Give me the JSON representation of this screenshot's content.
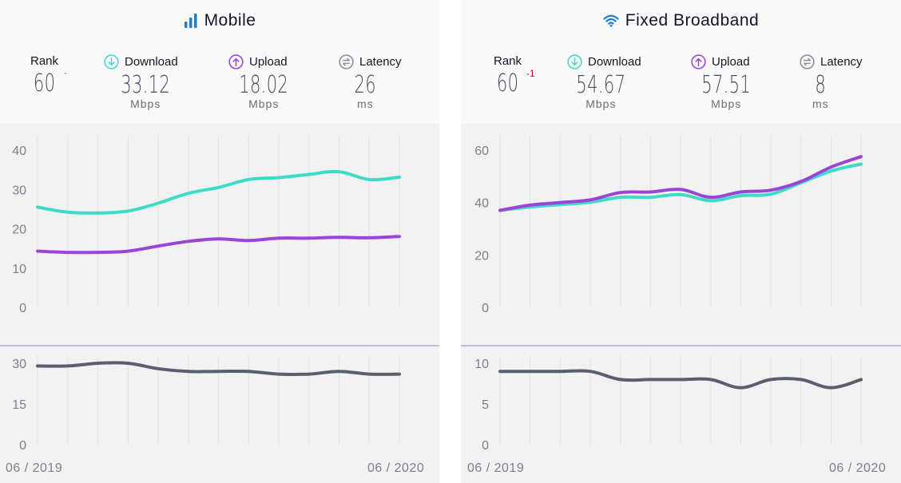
{
  "colors": {
    "download": "#3ddcc8",
    "upload": "#9b45d8",
    "latency": "#5b5d70",
    "rank_change": "#d0021b"
  },
  "mobile": {
    "title": "Mobile",
    "icon": "signal-bars-icon",
    "rank_label": "Rank",
    "rank": "60",
    "rank_change": "-",
    "download_label": "Download",
    "download": "33.12",
    "download_unit": "Mbps",
    "upload_label": "Upload",
    "upload": "18.02",
    "upload_unit": "Mbps",
    "latency_label": "Latency",
    "latency": "26",
    "latency_unit": "ms",
    "date_start": "06 / 2019",
    "date_end": "06 / 2020"
  },
  "fixed": {
    "title": "Fixed Broadband",
    "icon": "wifi-icon",
    "rank_label": "Rank",
    "rank": "60",
    "rank_change": "-1",
    "download_label": "Download",
    "download": "54.67",
    "download_unit": "Mbps",
    "upload_label": "Upload",
    "upload": "57.51",
    "upload_unit": "Mbps",
    "latency_label": "Latency",
    "latency": "8",
    "latency_unit": "ms",
    "date_start": "06 / 2019",
    "date_end": "06 / 2020"
  },
  "chart_data": [
    {
      "type": "line",
      "id": "mobile-speed",
      "x": [
        "06/2019",
        "07/2019",
        "08/2019",
        "09/2019",
        "10/2019",
        "11/2019",
        "12/2019",
        "01/2020",
        "02/2020",
        "03/2020",
        "04/2020",
        "05/2020",
        "06/2020"
      ],
      "series": [
        {
          "name": "Download",
          "values": [
            25.5,
            24.2,
            24.0,
            24.5,
            26.5,
            29,
            30.5,
            32.5,
            33,
            33.8,
            34.5,
            32.5,
            33.12
          ]
        },
        {
          "name": "Upload",
          "values": [
            14.3,
            14.0,
            14.0,
            14.3,
            15.6,
            16.8,
            17.4,
            17.0,
            17.6,
            17.6,
            17.8,
            17.7,
            18.02
          ]
        }
      ],
      "yticks": [
        0,
        10,
        20,
        30,
        40
      ],
      "ylim": [
        0,
        40
      ]
    },
    {
      "type": "line",
      "id": "mobile-latency",
      "x": [
        "06/2019",
        "07/2019",
        "08/2019",
        "09/2019",
        "10/2019",
        "11/2019",
        "12/2019",
        "01/2020",
        "02/2020",
        "03/2020",
        "04/2020",
        "05/2020",
        "06/2020"
      ],
      "series": [
        {
          "name": "Latency",
          "values": [
            29,
            29,
            30,
            30,
            28,
            27,
            27,
            27,
            26,
            26,
            27,
            26,
            26
          ]
        }
      ],
      "yticks": [
        0,
        15,
        30
      ],
      "ylim": [
        0,
        30
      ]
    },
    {
      "type": "line",
      "id": "fixed-speed",
      "x": [
        "06/2019",
        "07/2019",
        "08/2019",
        "09/2019",
        "10/2019",
        "11/2019",
        "12/2019",
        "01/2020",
        "02/2020",
        "03/2020",
        "04/2020",
        "05/2020",
        "06/2020"
      ],
      "series": [
        {
          "name": "Download",
          "values": [
            37,
            38.3,
            39.2,
            40.1,
            42.0,
            42.0,
            43.0,
            40.7,
            42.6,
            43.2,
            47.5,
            52.0,
            54.67
          ]
        },
        {
          "name": "Upload",
          "values": [
            37,
            39.0,
            40.0,
            41.0,
            43.8,
            44.0,
            45.0,
            42.0,
            44.0,
            44.7,
            48.0,
            53.5,
            57.51
          ]
        }
      ],
      "yticks": [
        0,
        20,
        40,
        60
      ],
      "ylim": [
        0,
        60
      ]
    },
    {
      "type": "line",
      "id": "fixed-latency",
      "x": [
        "06/2019",
        "07/2019",
        "08/2019",
        "09/2019",
        "10/2019",
        "11/2019",
        "12/2019",
        "01/2020",
        "02/2020",
        "03/2020",
        "04/2020",
        "05/2020",
        "06/2020"
      ],
      "series": [
        {
          "name": "Latency",
          "values": [
            9,
            9,
            9,
            9,
            8,
            8,
            8,
            8,
            7,
            8,
            8,
            7,
            8
          ]
        }
      ],
      "yticks": [
        0,
        5,
        10
      ],
      "ylim": [
        0,
        10
      ]
    }
  ]
}
